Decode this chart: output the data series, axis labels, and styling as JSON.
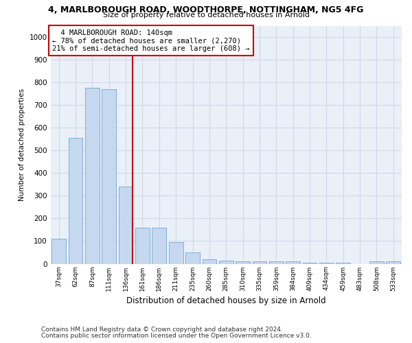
{
  "title1": "4, MARLBOROUGH ROAD, WOODTHORPE, NOTTINGHAM, NG5 4FG",
  "title2": "Size of property relative to detached houses in Arnold",
  "xlabel": "Distribution of detached houses by size in Arnold",
  "ylabel": "Number of detached properties",
  "categories": [
    "37sqm",
    "62sqm",
    "87sqm",
    "111sqm",
    "136sqm",
    "161sqm",
    "186sqm",
    "211sqm",
    "235sqm",
    "260sqm",
    "285sqm",
    "310sqm",
    "335sqm",
    "359sqm",
    "384sqm",
    "409sqm",
    "434sqm",
    "459sqm",
    "483sqm",
    "508sqm",
    "533sqm"
  ],
  "values": [
    110,
    555,
    775,
    770,
    340,
    160,
    160,
    95,
    50,
    20,
    15,
    10,
    10,
    10,
    10,
    5,
    5,
    5,
    0,
    10,
    10
  ],
  "bar_color": "#c5d8f0",
  "bar_edge_color": "#6fa8d4",
  "highlight_index": 4,
  "highlight_line_color": "#cc0000",
  "annotation_line1": "  4 MARLBOROUGH ROAD: 140sqm",
  "annotation_line2": "← 78% of detached houses are smaller (2,270)",
  "annotation_line3": "21% of semi-detached houses are larger (608) →",
  "annotation_box_color": "#ffffff",
  "annotation_box_edge": "#cc0000",
  "footnote1": "Contains HM Land Registry data © Crown copyright and database right 2024.",
  "footnote2": "Contains public sector information licensed under the Open Government Licence v3.0.",
  "ylim": [
    0,
    1050
  ],
  "yticks": [
    0,
    100,
    200,
    300,
    400,
    500,
    600,
    700,
    800,
    900,
    1000
  ],
  "grid_color": "#d0d8e8",
  "bg_color": "#eaf0f8"
}
